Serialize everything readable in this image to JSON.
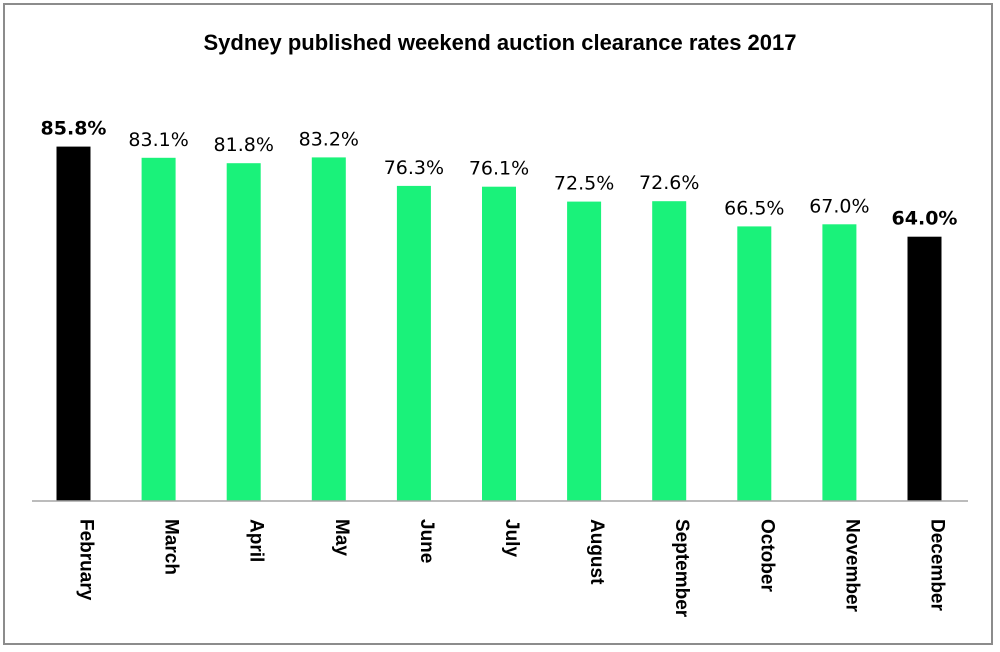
{
  "chart_data": {
    "type": "bar",
    "title": "Sydney published weekend auction clearance rates 2017",
    "categories": [
      "February",
      "March",
      "April",
      "May",
      "June",
      "July",
      "August",
      "September",
      "October",
      "November",
      "December"
    ],
    "values": [
      85.8,
      83.1,
      81.8,
      83.2,
      76.3,
      76.1,
      72.5,
      72.6,
      66.5,
      67.0,
      64.0
    ],
    "value_labels": [
      "85.8%",
      "83.1%",
      "81.8%",
      "83.2%",
      "76.3%",
      "76.1%",
      "72.5%",
      "72.6%",
      "66.5%",
      "67.0%",
      "64.0%"
    ],
    "highlighted": [
      true,
      false,
      false,
      false,
      false,
      false,
      false,
      false,
      false,
      false,
      true
    ],
    "colors": {
      "normal": "#1af27a",
      "highlight": "#000000",
      "axis": "#a6a6a6"
    },
    "xlabel": "",
    "ylabel": "",
    "ylim": [
      0,
      100
    ],
    "grid": false,
    "legend": "none"
  }
}
